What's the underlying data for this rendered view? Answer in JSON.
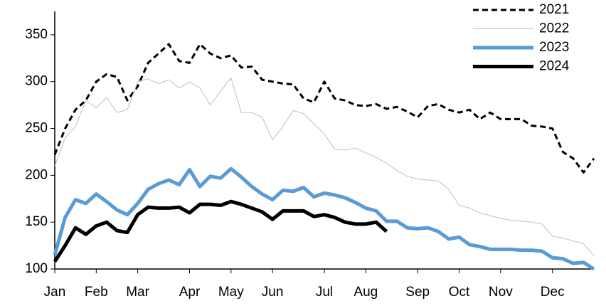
{
  "chart_data": {
    "type": "line",
    "categories": [
      "Jan",
      null,
      null,
      null,
      "Feb",
      null,
      null,
      null,
      "Mar",
      null,
      null,
      null,
      null,
      "Apr",
      null,
      null,
      null,
      "May",
      null,
      null,
      null,
      "Jun",
      null,
      null,
      null,
      null,
      "Jul",
      null,
      null,
      null,
      "Aug",
      null,
      null,
      null,
      null,
      "Sep",
      null,
      null,
      null,
      "Oct",
      null,
      null,
      null,
      "Nov",
      null,
      null,
      null,
      null,
      "Dec",
      null,
      null,
      null,
      null
    ],
    "series": [
      {
        "name": "2021",
        "color": "#000000",
        "linewidth": 3,
        "dashed": true,
        "values": [
          222,
          250,
          270,
          280,
          300,
          308,
          305,
          280,
          295,
          320,
          330,
          340,
          322,
          320,
          340,
          330,
          325,
          328,
          315,
          316,
          302,
          300,
          298,
          297,
          282,
          278,
          300,
          282,
          280,
          275,
          274,
          276,
          271,
          273,
          268,
          262,
          274,
          276,
          270,
          267,
          270,
          260,
          267,
          260,
          260,
          260,
          253,
          252,
          250,
          225,
          218,
          203,
          218
        ]
      },
      {
        "name": "2022",
        "color": "#bfbfbf",
        "linewidth": 1,
        "dashed": false,
        "values": [
          210,
          240,
          252,
          280,
          272,
          283,
          267,
          270,
          300,
          303,
          298,
          302,
          293,
          300,
          293,
          275,
          290,
          304,
          267,
          267,
          262,
          238,
          252,
          269,
          266,
          255,
          244,
          228,
          227,
          229,
          224,
          219,
          213,
          205,
          199,
          196,
          195,
          194,
          185,
          168,
          165,
          160,
          157,
          154,
          152,
          151,
          150,
          148,
          135,
          133,
          130,
          127,
          114
        ]
      },
      {
        "name": "2023",
        "color": "#5b9bd5",
        "linewidth": 5,
        "dashed": false,
        "values": [
          115,
          155,
          174,
          170,
          180,
          172,
          163,
          158,
          170,
          185,
          191,
          195,
          190,
          206,
          188,
          199,
          197,
          207,
          198,
          188,
          180,
          174,
          184,
          183,
          187,
          177,
          181,
          179,
          176,
          171,
          165,
          162,
          151,
          151,
          144,
          143,
          144,
          140,
          132,
          134,
          126,
          124,
          121,
          121,
          121,
          120,
          120,
          119,
          112,
          111,
          106,
          107,
          100
        ]
      },
      {
        "name": "2024",
        "color": "#000000",
        "linewidth": 5,
        "dashed": false,
        "values": [
          108,
          125,
          144,
          137,
          146,
          150,
          141,
          139,
          158,
          166,
          165,
          165,
          166,
          160,
          169,
          169,
          168,
          172,
          169,
          165,
          161,
          153,
          162,
          162,
          162,
          156,
          158,
          155,
          150,
          148,
          148,
          150,
          140,
          null,
          null,
          null,
          null,
          null,
          null,
          null,
          null,
          null,
          null,
          null,
          null,
          null,
          null,
          null,
          null,
          null,
          null,
          null,
          null
        ]
      }
    ],
    "ylim": [
      100,
      375
    ],
    "yticks": [
      100,
      150,
      200,
      250,
      300,
      350
    ],
    "grid": false,
    "legend": "upper right"
  }
}
